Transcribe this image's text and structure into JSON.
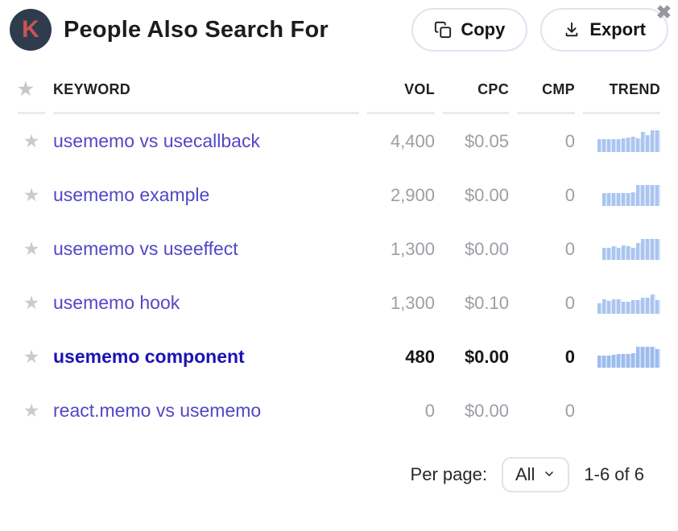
{
  "header": {
    "logo_letter": "K",
    "title": "People Also Search For",
    "copy_label": "Copy",
    "export_label": "Export",
    "close_glyph": "✖"
  },
  "table": {
    "columns": {
      "keyword": "KEYWORD",
      "vol": "VOL",
      "cpc": "CPC",
      "cmp": "CMP",
      "trend": "TREND"
    },
    "star_glyph": "★",
    "rows": [
      {
        "keyword": "usememo vs usecallback",
        "vol": "4,400",
        "cpc": "$0.05",
        "cmp": "0",
        "trend": [
          58,
          58,
          58,
          60,
          60,
          62,
          68,
          70,
          62,
          92,
          78,
          100,
          100
        ],
        "highlighted": false
      },
      {
        "keyword": "usememo example",
        "vol": "2,900",
        "cpc": "$0.00",
        "cmp": "0",
        "trend": [
          60,
          60,
          60,
          60,
          60,
          60,
          62,
          98,
          98,
          98,
          98,
          98
        ],
        "highlighted": false
      },
      {
        "keyword": "usememo vs useeffect",
        "vol": "1,300",
        "cpc": "$0.00",
        "cmp": "0",
        "trend": [
          55,
          55,
          62,
          55,
          66,
          62,
          56,
          76,
          95,
          95,
          95,
          95
        ],
        "highlighted": false
      },
      {
        "keyword": "usememo hook",
        "vol": "1,300",
        "cpc": "$0.10",
        "cmp": "0",
        "trend": [
          48,
          68,
          58,
          66,
          66,
          54,
          54,
          64,
          64,
          74,
          74,
          90,
          64
        ],
        "highlighted": false
      },
      {
        "keyword": "usememo component",
        "vol": "480",
        "cpc": "$0.00",
        "cmp": "0",
        "trend": [
          55,
          55,
          55,
          58,
          64,
          64,
          64,
          66,
          98,
          98,
          98,
          98,
          84
        ],
        "highlighted": true
      },
      {
        "keyword": "react.memo vs usememo",
        "vol": "0",
        "cpc": "$0.00",
        "cmp": "0",
        "trend": [],
        "highlighted": false
      }
    ]
  },
  "footer": {
    "per_page_label": "Per page:",
    "per_page_value": "All",
    "range_text": "1-6 of 6"
  },
  "colors": {
    "logo_bg": "#2e3c4e",
    "logo_letter": "#ca564f",
    "keyword_link": "#5347c5",
    "keyword_link_visited": "#1c12b3",
    "value_gray": "#9b9fa5",
    "value_dark": "#14161a",
    "trend_bar": "#aac5f0",
    "star_gray": "#c9cbce",
    "button_border": "#dfe3f0",
    "header_underline": "#e7ebf2",
    "close_icon": "#97989d"
  }
}
